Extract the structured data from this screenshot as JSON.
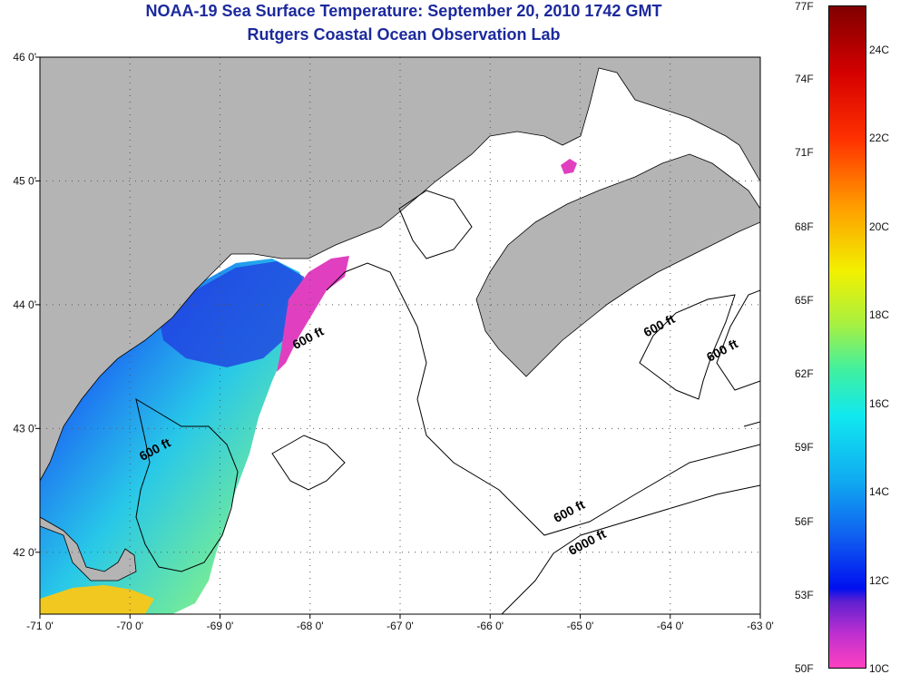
{
  "title": "NOAA-19 Sea Surface Temperature:  September 20, 2010 1742 GMT",
  "subtitle": "Rutgers Coastal Ocean Observation Lab",
  "map": {
    "lon_range": [
      -71,
      -63
    ],
    "lat_range": [
      41.5,
      46
    ],
    "x_ticks": [
      "-71 0'",
      "-70 0'",
      "-69 0'",
      "-68 0'",
      "-67 0'",
      "-66 0'",
      "-65 0'",
      "-64 0'",
      "-63 0'"
    ],
    "x_tick_values": [
      -71,
      -70,
      -69,
      -68,
      -67,
      -66,
      -65,
      -64,
      -63
    ],
    "y_ticks": [
      "46 0'",
      "45 0'",
      "44 0'",
      "43 0'",
      "42 0'"
    ],
    "y_tick_values": [
      46,
      45,
      44,
      43,
      42
    ],
    "contour_labels": [
      {
        "text": "600 ft",
        "lon": -68.0,
        "lat": 43.7
      },
      {
        "text": "600 ft",
        "lon": -69.7,
        "lat": 42.8
      },
      {
        "text": "600 ft",
        "lon": -64.1,
        "lat": 43.8
      },
      {
        "text": "600 ft",
        "lon": -63.4,
        "lat": 43.6
      },
      {
        "text": "600 ft",
        "lon": -65.1,
        "lat": 42.3
      },
      {
        "text": "6000 ft",
        "lon": -64.9,
        "lat": 42.05
      }
    ],
    "land_color": "#b4b4b4",
    "ocean_nodata_color": "#ffffff"
  },
  "colorbar": {
    "f_labels": [
      "77F",
      "74F",
      "71F",
      "68F",
      "65F",
      "62F",
      "59F",
      "56F",
      "53F",
      "50F"
    ],
    "f_values": [
      77,
      74,
      71,
      68,
      65,
      62,
      59,
      56,
      53,
      50
    ],
    "c_labels": [
      "24C",
      "22C",
      "20C",
      "18C",
      "16C",
      "14C",
      "12C",
      "10C"
    ],
    "c_values": [
      24,
      22,
      20,
      18,
      16,
      14,
      12,
      10
    ],
    "range_f": [
      50,
      77
    ]
  }
}
